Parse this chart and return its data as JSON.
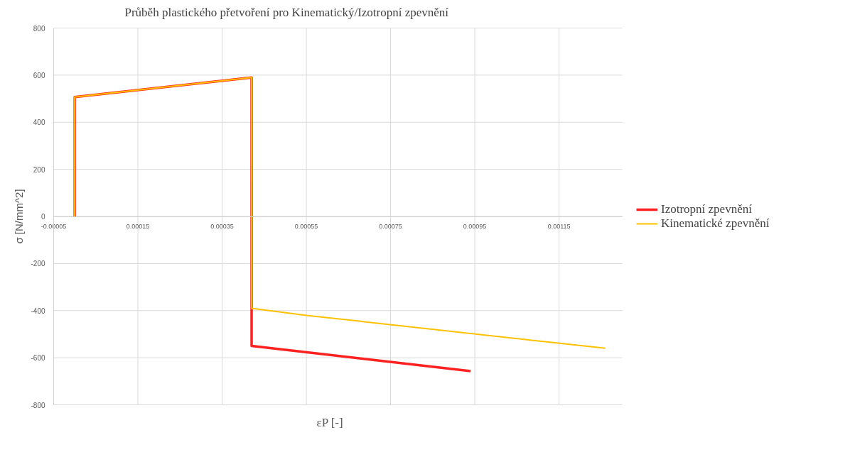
{
  "chart_data": {
    "type": "line",
    "title": "Průběh plastického přetvoření pro Kinematický/Izotropní zpevnění",
    "xlabel": "εP [-]",
    "ylabel": "σ [N/mm^2]",
    "series": [
      {
        "name": "Izotropní zpevnění",
        "color": "#ff2020",
        "x": [
          0,
          0,
          0.00042,
          0.00042,
          0.00042,
          0.00094
        ],
        "values": [
          0,
          507,
          590,
          -390,
          -550,
          -657
        ]
      },
      {
        "name": "Kinematické zpevnění",
        "color": "#ffc000",
        "x": [
          0,
          0,
          0.00042,
          0.00042,
          0.00055,
          0.00126
        ],
        "values": [
          0,
          507,
          590,
          -390,
          -420,
          -560
        ]
      }
    ],
    "xlim": [
      -5e-05,
      0.0013
    ],
    "xticks": [
      {
        "value": -5e-05,
        "label": "-0.00005"
      },
      {
        "value": 0.00015,
        "label": "0.00015"
      },
      {
        "value": 0.00035,
        "label": "0.00035"
      },
      {
        "value": 0.00055,
        "label": "0.00055"
      },
      {
        "value": 0.00075,
        "label": "0.00075"
      },
      {
        "value": 0.00095,
        "label": "0.00095"
      },
      {
        "value": 0.00115,
        "label": "0.00115"
      }
    ],
    "ylim": [
      -800,
      800
    ],
    "yticks": [
      -800,
      -600,
      -400,
      -200,
      0,
      200,
      400,
      600,
      800
    ],
    "grid": true,
    "legend": "right",
    "marker": "none",
    "line_style": "solid"
  }
}
